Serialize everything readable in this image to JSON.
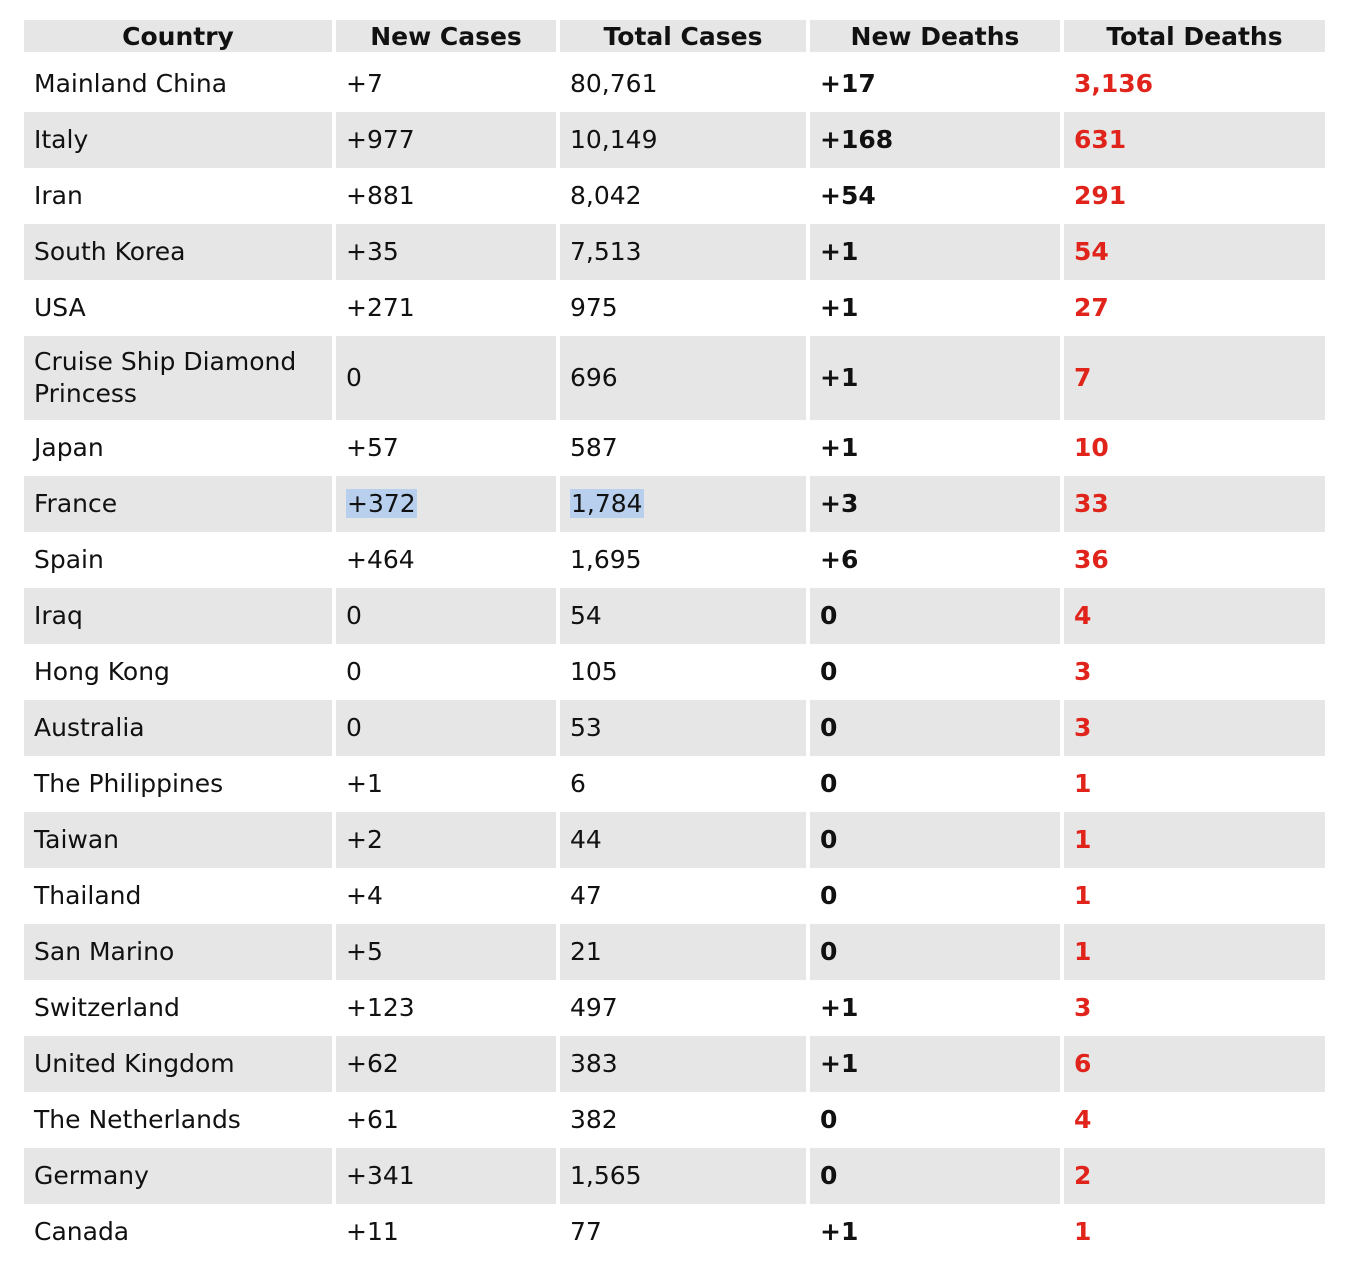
{
  "headers": [
    "Country",
    "New Cases",
    "Total Cases",
    "New Deaths",
    "Total Deaths"
  ],
  "colors": {
    "header_bg": "#e6e6e6",
    "stripe_bg": "#e6e6e6",
    "total_deaths": "#e0241b",
    "selection": "#b8d0ee"
  },
  "rows": [
    {
      "country": "Mainland China",
      "new_cases": "+7",
      "total_cases": "80,761",
      "new_deaths": "+17",
      "total_deaths": "3,136"
    },
    {
      "country": "Italy",
      "new_cases": "+977",
      "total_cases": "10,149",
      "new_deaths": "+168",
      "total_deaths": "631"
    },
    {
      "country": "Iran",
      "new_cases": "+881",
      "total_cases": "8,042",
      "new_deaths": "+54",
      "total_deaths": "291"
    },
    {
      "country": "South Korea",
      "new_cases": "+35",
      "total_cases": "7,513",
      "new_deaths": "+1",
      "total_deaths": "54"
    },
    {
      "country": "USA",
      "new_cases": "+271",
      "total_cases": "975",
      "new_deaths": "+1",
      "total_deaths": "27"
    },
    {
      "country": "Cruise Ship Diamond Princess",
      "new_cases": "0",
      "total_cases": "696",
      "new_deaths": "+1",
      "total_deaths": "7"
    },
    {
      "country": "Japan",
      "new_cases": "+57",
      "total_cases": "587",
      "new_deaths": "+1",
      "total_deaths": "10"
    },
    {
      "country": "France",
      "new_cases": "+372",
      "total_cases": "1,784",
      "new_deaths": "+3",
      "total_deaths": "33"
    },
    {
      "country": "Spain",
      "new_cases": "+464",
      "total_cases": "1,695",
      "new_deaths": "+6",
      "total_deaths": "36"
    },
    {
      "country": "Iraq",
      "new_cases": "0",
      "total_cases": "54",
      "new_deaths": "0",
      "total_deaths": "4"
    },
    {
      "country": "Hong Kong",
      "new_cases": "0",
      "total_cases": "105",
      "new_deaths": "0",
      "total_deaths": "3"
    },
    {
      "country": "Australia",
      "new_cases": "0",
      "total_cases": "53",
      "new_deaths": "0",
      "total_deaths": "3"
    },
    {
      "country": "The Philippines",
      "new_cases": "+1",
      "total_cases": "6",
      "new_deaths": "0",
      "total_deaths": "1"
    },
    {
      "country": "Taiwan",
      "new_cases": "+2",
      "total_cases": "44",
      "new_deaths": "0",
      "total_deaths": "1"
    },
    {
      "country": "Thailand",
      "new_cases": "+4",
      "total_cases": "47",
      "new_deaths": "0",
      "total_deaths": "1"
    },
    {
      "country": "San Marino",
      "new_cases": "+5",
      "total_cases": "21",
      "new_deaths": "0",
      "total_deaths": "1"
    },
    {
      "country": "Switzerland",
      "new_cases": "+123",
      "total_cases": "497",
      "new_deaths": "+1",
      "total_deaths": "3"
    },
    {
      "country": "United Kingdom",
      "new_cases": "+62",
      "total_cases": "383",
      "new_deaths": "+1",
      "total_deaths": "6"
    },
    {
      "country": "The Netherlands",
      "new_cases": "+61",
      "total_cases": "382",
      "new_deaths": "0",
      "total_deaths": "4"
    },
    {
      "country": "Germany",
      "new_cases": "+341",
      "total_cases": "1,565",
      "new_deaths": "0",
      "total_deaths": "2"
    },
    {
      "country": "Canada",
      "new_cases": "+11",
      "total_cases": "77",
      "new_deaths": "+1",
      "total_deaths": "1"
    }
  ]
}
